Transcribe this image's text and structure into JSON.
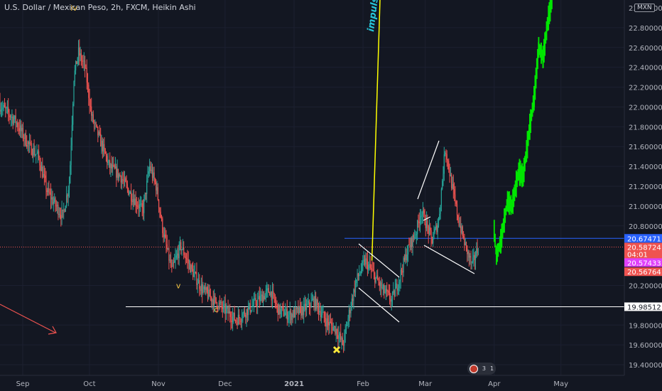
{
  "header": {
    "title": "U.S. Dollar / Mexican Peso, 2h, FXCM, Heikin Ashi",
    "currency_badge": "MXN"
  },
  "widget": {
    "count_a": "3",
    "count_b": "1"
  },
  "chart_data": {
    "type": "candlestick",
    "chart_style": "Heikin Ashi",
    "y_axis": {
      "range": [
        19.3,
        23.0
      ],
      "ticks": [
        "22.80000",
        "22.60000",
        "22.40000",
        "22.20000",
        "22.00000",
        "21.80000",
        "21.60000",
        "21.40000",
        "21.20000",
        "21.00000",
        "20.80000",
        "20.20000",
        "19.80000",
        "19.60000",
        "19.40000"
      ],
      "top_partial_label": "23.00000"
    },
    "x_axis": {
      "ticks": [
        {
          "label": "Sep",
          "date": "2020-09-01"
        },
        {
          "label": "Oct",
          "date": "2020-10-01"
        },
        {
          "label": "Nov",
          "date": "2020-11-01"
        },
        {
          "label": "Dec",
          "date": "2020-12-01"
        },
        {
          "label": "2021",
          "date": "2021-01-01"
        },
        {
          "label": "Feb",
          "date": "2021-02-01"
        },
        {
          "label": "Mar",
          "date": "2021-03-01"
        },
        {
          "label": "Apr",
          "date": "2021-04-01"
        },
        {
          "label": "May",
          "date": "2021-05-01"
        }
      ]
    },
    "price_path": [
      {
        "date": "2020-08-20",
        "close": 22.05
      },
      {
        "date": "2020-08-25",
        "close": 21.95
      },
      {
        "date": "2020-08-29",
        "close": 21.85
      },
      {
        "date": "2020-09-04",
        "close": 21.6
      },
      {
        "date": "2020-09-08",
        "close": 21.5
      },
      {
        "date": "2020-09-12",
        "close": 21.15
      },
      {
        "date": "2020-09-16",
        "close": 21.0
      },
      {
        "date": "2020-09-19",
        "close": 20.9
      },
      {
        "date": "2020-09-22",
        "close": 21.25
      },
      {
        "date": "2020-09-24",
        "close": 22.3
      },
      {
        "date": "2020-09-26",
        "close": 22.55
      },
      {
        "date": "2020-09-29",
        "close": 22.4
      },
      {
        "date": "2020-10-02",
        "close": 21.9
      },
      {
        "date": "2020-10-06",
        "close": 21.65
      },
      {
        "date": "2020-10-10",
        "close": 21.4
      },
      {
        "date": "2020-10-15",
        "close": 21.3
      },
      {
        "date": "2020-10-20",
        "close": 21.1
      },
      {
        "date": "2020-10-25",
        "close": 20.95
      },
      {
        "date": "2020-10-28",
        "close": 21.4
      },
      {
        "date": "2020-10-31",
        "close": 21.2
      },
      {
        "date": "2020-11-03",
        "close": 20.75
      },
      {
        "date": "2020-11-07",
        "close": 20.35
      },
      {
        "date": "2020-11-11",
        "close": 20.6
      },
      {
        "date": "2020-11-16",
        "close": 20.35
      },
      {
        "date": "2020-11-21",
        "close": 20.15
      },
      {
        "date": "2020-11-26",
        "close": 20.05
      },
      {
        "date": "2020-12-01",
        "close": 19.95
      },
      {
        "date": "2020-12-06",
        "close": 19.85
      },
      {
        "date": "2020-12-11",
        "close": 19.95
      },
      {
        "date": "2020-12-16",
        "close": 20.05
      },
      {
        "date": "2020-12-21",
        "close": 20.15
      },
      {
        "date": "2020-12-25",
        "close": 19.95
      },
      {
        "date": "2020-12-30",
        "close": 19.9
      },
      {
        "date": "2021-01-05",
        "close": 19.95
      },
      {
        "date": "2021-01-10",
        "close": 20.05
      },
      {
        "date": "2021-01-15",
        "close": 19.85
      },
      {
        "date": "2021-01-20",
        "close": 19.75
      },
      {
        "date": "2021-01-23",
        "close": 19.6
      },
      {
        "date": "2021-01-26",
        "close": 19.95
      },
      {
        "date": "2021-01-29",
        "close": 20.25
      },
      {
        "date": "2021-02-02",
        "close": 20.45
      },
      {
        "date": "2021-02-06",
        "close": 20.3
      },
      {
        "date": "2021-02-10",
        "close": 20.15
      },
      {
        "date": "2021-02-14",
        "close": 20.05
      },
      {
        "date": "2021-02-17",
        "close": 20.25
      },
      {
        "date": "2021-02-21",
        "close": 20.55
      },
      {
        "date": "2021-02-25",
        "close": 20.75
      },
      {
        "date": "2021-02-27",
        "close": 20.95
      },
      {
        "date": "2021-03-01",
        "close": 20.85
      },
      {
        "date": "2021-03-04",
        "close": 20.65
      },
      {
        "date": "2021-03-07",
        "close": 20.85
      },
      {
        "date": "2021-03-10",
        "close": 21.6
      },
      {
        "date": "2021-03-13",
        "close": 21.2
      },
      {
        "date": "2021-03-16",
        "close": 20.85
      },
      {
        "date": "2021-03-19",
        "close": 20.6
      },
      {
        "date": "2021-03-22",
        "close": 20.4
      },
      {
        "date": "2021-03-25",
        "close": 20.6
      }
    ],
    "projection_path": [
      {
        "date": "2021-04-01",
        "value": 20.75
      },
      {
        "date": "2021-04-02",
        "value": 20.5
      },
      {
        "date": "2021-04-04",
        "value": 20.65
      },
      {
        "date": "2021-04-07",
        "value": 21.05
      },
      {
        "date": "2021-04-09",
        "value": 21.0
      },
      {
        "date": "2021-04-12",
        "value": 21.35
      },
      {
        "date": "2021-04-14",
        "value": 21.3
      },
      {
        "date": "2021-04-17",
        "value": 21.8
      },
      {
        "date": "2021-04-19",
        "value": 22.1
      },
      {
        "date": "2021-04-21",
        "value": 22.6
      },
      {
        "date": "2021-04-23",
        "value": 22.5
      },
      {
        "date": "2021-04-25",
        "value": 22.85
      },
      {
        "date": "2021-04-27",
        "value": 23.1
      }
    ],
    "price_lines": [
      {
        "value": 20.67471,
        "label": "20.67471",
        "color": "#2962ff"
      },
      {
        "value": 20.58724,
        "label": "20.58724",
        "color": "#ef5350",
        "countdown": "04:01"
      },
      {
        "value": 20.57433,
        "label": "20.57433",
        "color": "#e040fb"
      },
      {
        "value": 20.56764,
        "label": "20.56764",
        "color": "#ef5350"
      },
      {
        "value": 19.98512,
        "label": "19.98512",
        "color": "#ffffff"
      }
    ],
    "wave_labels": [
      {
        "text": "iv",
        "date": "2020-09-24",
        "value": 22.97
      },
      {
        "text": "v",
        "date": "2020-11-10",
        "value": 20.17
      },
      {
        "text": "c",
        "date": "2020-11-27",
        "value": 19.93
      }
    ],
    "annotation": {
      "text": "impulse",
      "color": "#26c6da"
    },
    "colors": {
      "up": "#26a69a",
      "down": "#ef5350",
      "projection": "#00e600",
      "trend": "#ffff00",
      "marker": "#ffeb3b",
      "arrow": "#ef5350"
    }
  }
}
